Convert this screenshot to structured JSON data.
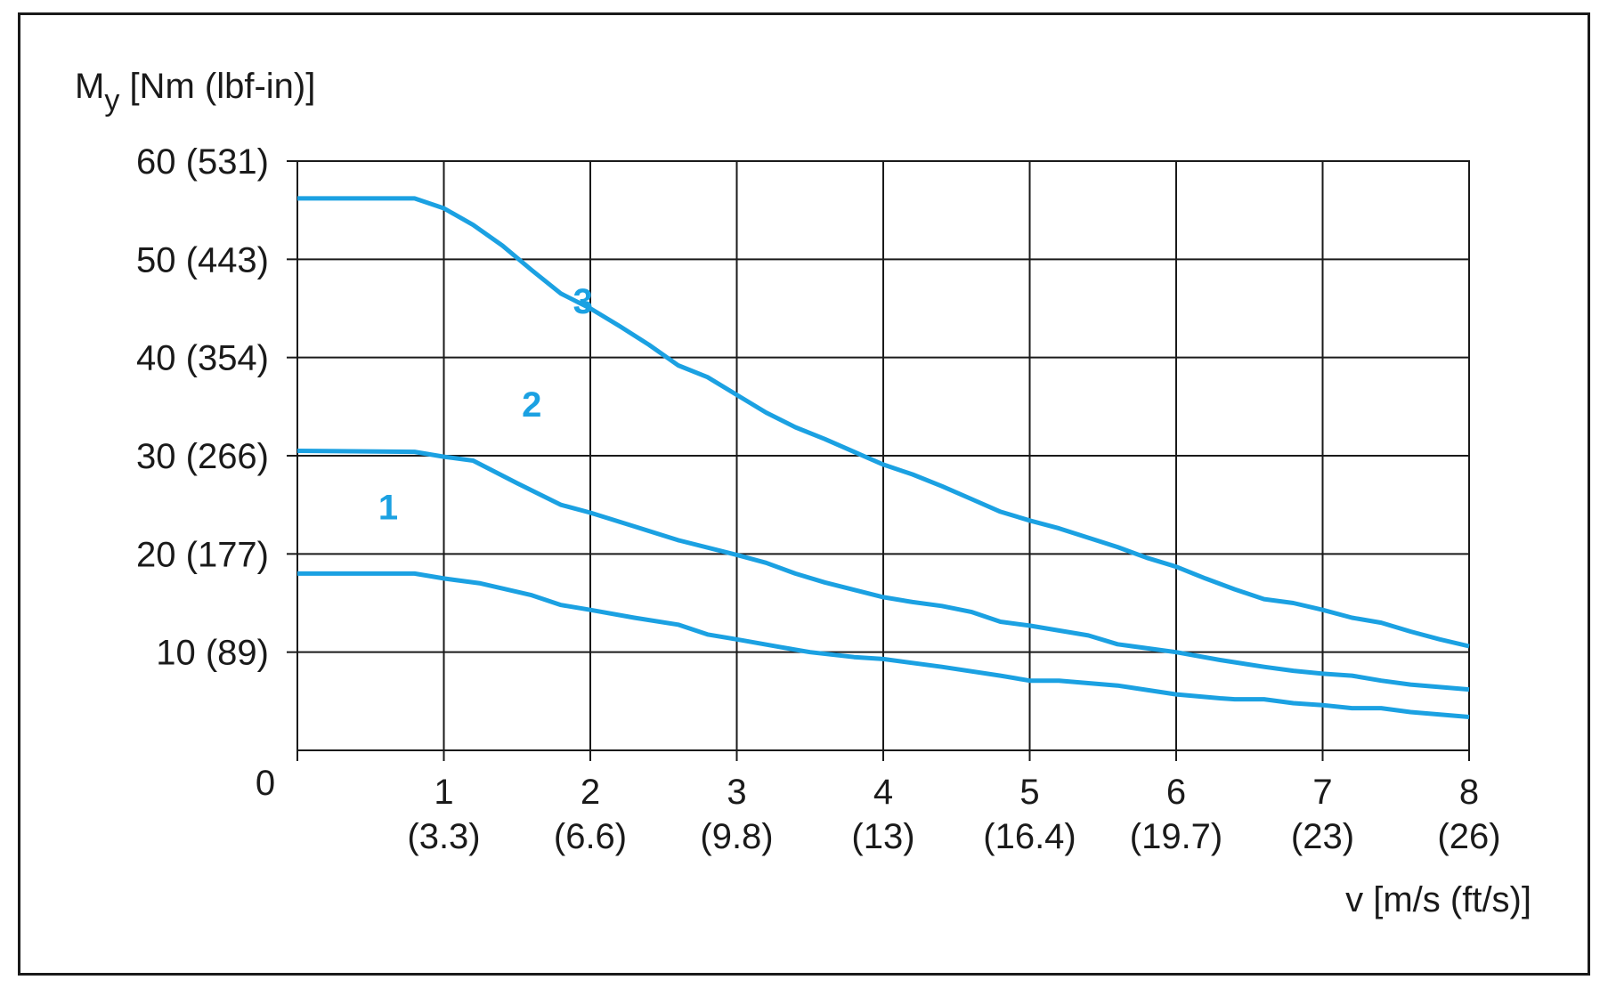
{
  "chart_data": {
    "type": "line",
    "ylabel_main": "M",
    "ylabel_sub": "y",
    "ylabel_rest": " [Nm (lbf-in)]",
    "xlabel": "v [m/s (ft/s)]",
    "xlim": [
      0,
      8
    ],
    "ylim": [
      0,
      60
    ],
    "grid": true,
    "y_zero_label": "0",
    "y_ticks": [
      {
        "value": 10,
        "label": "10 (89)"
      },
      {
        "value": 20,
        "label": "20 (177)"
      },
      {
        "value": 30,
        "label": "30 (266)"
      },
      {
        "value": 40,
        "label": "40 (354)"
      },
      {
        "value": 50,
        "label": "50 (443)"
      },
      {
        "value": 60,
        "label": "60 (531)"
      }
    ],
    "x_ticks": [
      {
        "value": 1,
        "label": "1",
        "sub": "(3.3)"
      },
      {
        "value": 2,
        "label": "2",
        "sub": "(6.6)"
      },
      {
        "value": 3,
        "label": "3",
        "sub": "(9.8)"
      },
      {
        "value": 4,
        "label": "4",
        "sub": "(13)"
      },
      {
        "value": 5,
        "label": "5",
        "sub": "(16.4)"
      },
      {
        "value": 6,
        "label": "6",
        "sub": "(19.7)"
      },
      {
        "value": 7,
        "label": "7",
        "sub": "(23)"
      },
      {
        "value": 8,
        "label": "8",
        "sub": "(26)"
      }
    ],
    "line_color": "#1ba1e2",
    "series": [
      {
        "name": "1",
        "label_at": [
          0.62,
          23.5
        ],
        "points": [
          [
            0,
            18
          ],
          [
            0.8,
            18
          ],
          [
            1.0,
            17.5
          ],
          [
            1.25,
            17
          ],
          [
            1.6,
            15.8
          ],
          [
            1.8,
            14.8
          ],
          [
            2.0,
            14.3
          ],
          [
            2.3,
            13.5
          ],
          [
            2.6,
            12.8
          ],
          [
            2.8,
            11.8
          ],
          [
            3.0,
            11.3
          ],
          [
            3.3,
            10.5
          ],
          [
            3.5,
            10
          ],
          [
            3.8,
            9.5
          ],
          [
            4.0,
            9.3
          ],
          [
            4.4,
            8.5
          ],
          [
            4.8,
            7.6
          ],
          [
            5.0,
            7.1
          ],
          [
            5.2,
            7.1
          ],
          [
            5.6,
            6.6
          ],
          [
            6.0,
            5.7
          ],
          [
            6.3,
            5.3
          ],
          [
            6.4,
            5.2
          ],
          [
            6.6,
            5.2
          ],
          [
            6.8,
            4.8
          ],
          [
            7.0,
            4.6
          ],
          [
            7.2,
            4.3
          ],
          [
            7.4,
            4.3
          ],
          [
            7.6,
            3.9
          ],
          [
            8.0,
            3.4
          ]
        ]
      },
      {
        "name": "2",
        "label_at": [
          1.6,
          34
        ],
        "points": [
          [
            0,
            30.5
          ],
          [
            0.8,
            30.4
          ],
          [
            1.0,
            29.9
          ],
          [
            1.2,
            29.5
          ],
          [
            1.5,
            27.2
          ],
          [
            1.8,
            25
          ],
          [
            2.0,
            24.2
          ],
          [
            2.3,
            22.8
          ],
          [
            2.6,
            21.4
          ],
          [
            3.0,
            19.9
          ],
          [
            3.2,
            19.1
          ],
          [
            3.4,
            18
          ],
          [
            3.6,
            17.1
          ],
          [
            4.0,
            15.6
          ],
          [
            4.2,
            15.1
          ],
          [
            4.4,
            14.7
          ],
          [
            4.6,
            14.1
          ],
          [
            4.8,
            13.1
          ],
          [
            5.0,
            12.7
          ],
          [
            5.4,
            11.7
          ],
          [
            5.6,
            10.8
          ],
          [
            6.0,
            10.0
          ],
          [
            6.3,
            9.2
          ],
          [
            6.6,
            8.5
          ],
          [
            6.8,
            8.1
          ],
          [
            7.0,
            7.8
          ],
          [
            7.2,
            7.6
          ],
          [
            7.4,
            7.1
          ],
          [
            7.6,
            6.7
          ],
          [
            8.0,
            6.2
          ]
        ]
      },
      {
        "name": "3",
        "label_at": [
          1.95,
          44.5
        ],
        "points": [
          [
            0,
            56.2
          ],
          [
            0.8,
            56.2
          ],
          [
            1.0,
            55.2
          ],
          [
            1.2,
            53.5
          ],
          [
            1.4,
            51.4
          ],
          [
            1.6,
            48.9
          ],
          [
            1.8,
            46.5
          ],
          [
            2.0,
            45
          ],
          [
            2.2,
            43.2
          ],
          [
            2.4,
            41.3
          ],
          [
            2.6,
            39.2
          ],
          [
            2.8,
            38
          ],
          [
            3.0,
            36.2
          ],
          [
            3.2,
            34.4
          ],
          [
            3.4,
            32.9
          ],
          [
            3.6,
            31.7
          ],
          [
            3.8,
            30.4
          ],
          [
            4.0,
            29.1
          ],
          [
            4.2,
            28.1
          ],
          [
            4.4,
            26.9
          ],
          [
            4.6,
            25.6
          ],
          [
            4.8,
            24.3
          ],
          [
            5.0,
            23.4
          ],
          [
            5.2,
            22.6
          ],
          [
            5.6,
            20.7
          ],
          [
            5.8,
            19.6
          ],
          [
            6.0,
            18.7
          ],
          [
            6.2,
            17.5
          ],
          [
            6.4,
            16.4
          ],
          [
            6.6,
            15.4
          ],
          [
            6.8,
            15
          ],
          [
            7.0,
            14.3
          ],
          [
            7.2,
            13.5
          ],
          [
            7.4,
            13
          ],
          [
            7.6,
            12.1
          ],
          [
            7.8,
            11.3
          ],
          [
            8.0,
            10.6
          ]
        ]
      }
    ]
  }
}
